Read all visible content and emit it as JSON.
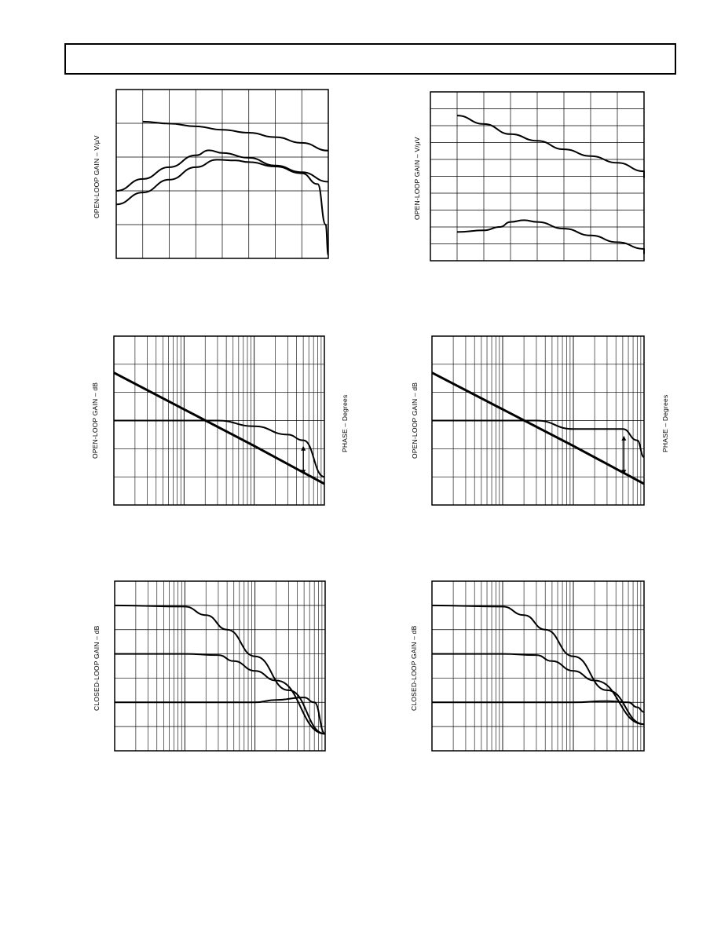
{
  "page": {
    "ylabel_open_loop_vuv": "OPEN-LOOP GAIN – V/μV",
    "ylabel_open_loop_db": "OPEN-LOOP GAIN – dB",
    "ylabel_phase": "PHASE – Degrees",
    "ylabel_closed_loop_db": "CLOSED-LOOP GAIN – dB"
  },
  "chart_data": [
    {
      "type": "line",
      "ylabel": "OPEN-LOOP GAIN – V/μV",
      "xscale": "linear",
      "xlim": [
        0,
        8
      ],
      "ylim": [
        0,
        5
      ],
      "grid": true,
      "series": [
        {
          "x": [
            1,
            2,
            3,
            4,
            5,
            6,
            7,
            8
          ],
          "y": [
            4.05,
            3.99,
            3.91,
            3.81,
            3.72,
            3.59,
            3.42,
            3.19
          ]
        },
        {
          "x": [
            0,
            1,
            2,
            3,
            3.5,
            4,
            5,
            6,
            7,
            8
          ],
          "y": [
            2.0,
            2.35,
            2.7,
            3.05,
            3.2,
            3.12,
            2.98,
            2.75,
            2.55,
            2.27
          ]
        },
        {
          "x": [
            0,
            1,
            2,
            3,
            3.8,
            4.5,
            5,
            6,
            7,
            7.6,
            7.9,
            8
          ],
          "y": [
            1.6,
            1.95,
            2.33,
            2.7,
            2.92,
            2.9,
            2.85,
            2.72,
            2.52,
            2.2,
            1.0,
            0.1
          ]
        }
      ]
    },
    {
      "type": "line",
      "ylabel": "OPEN-LOOP GAIN – V/μV",
      "xscale": "linear",
      "xlim": [
        0,
        8
      ],
      "ylim": [
        0,
        10
      ],
      "grid": true,
      "series": [
        {
          "x": [
            1,
            2,
            3,
            4,
            5,
            6,
            7,
            8,
            9
          ],
          "y": [
            8.6,
            8.1,
            7.5,
            7.1,
            6.6,
            6.2,
            5.8,
            5.3,
            4.9
          ]
        },
        {
          "x": [
            1,
            2,
            2.6,
            3,
            3.5,
            4,
            5,
            6,
            7,
            8,
            9
          ],
          "y": [
            1.7,
            1.8,
            2.0,
            2.3,
            2.4,
            2.3,
            1.9,
            1.5,
            1.1,
            0.7,
            0.4
          ]
        }
      ]
    },
    {
      "type": "line",
      "ylabel": "OPEN-LOOP GAIN – dB",
      "y2label": "PHASE – Degrees",
      "xscale": "log",
      "xlim": [
        1,
        1000
      ],
      "ylim": [
        0,
        6
      ],
      "grid": true,
      "annotations": [
        "double-arrow"
      ],
      "series": [
        {
          "x": [
            1,
            10,
            100,
            1000
          ],
          "y": [
            4.7,
            3.4,
            2.1,
            0.75
          ]
        },
        {
          "x": [
            1,
            10,
            30,
            100,
            300,
            500,
            1000
          ],
          "y": [
            3.0,
            3.0,
            3.0,
            2.8,
            2.5,
            2.3,
            1.0
          ]
        }
      ]
    },
    {
      "type": "line",
      "ylabel": "OPEN-LOOP GAIN – dB",
      "y2label": "PHASE – Degrees",
      "xscale": "log",
      "xlim": [
        1,
        1000
      ],
      "ylim": [
        0,
        6
      ],
      "grid": true,
      "annotations": [
        "double-arrow"
      ],
      "series": [
        {
          "x": [
            1,
            10,
            100,
            1000
          ],
          "y": [
            4.7,
            3.4,
            2.1,
            0.75
          ]
        },
        {
          "x": [
            1,
            10,
            30,
            100,
            200,
            500,
            800,
            1000
          ],
          "y": [
            3.0,
            3.0,
            3.0,
            2.7,
            2.7,
            2.7,
            2.3,
            1.7
          ]
        }
      ]
    },
    {
      "type": "line",
      "ylabel": "CLOSED-LOOP GAIN – dB",
      "xscale": "log",
      "xlim": [
        1,
        1000
      ],
      "ylim": [
        0,
        7
      ],
      "grid": true,
      "series": [
        {
          "x": [
            1,
            10,
            20,
            40,
            100,
            300,
            1000
          ],
          "y": [
            6.0,
            5.95,
            5.6,
            5.0,
            3.9,
            2.5,
            0.7
          ]
        },
        {
          "x": [
            1,
            10,
            30,
            50,
            100,
            200,
            1000
          ],
          "y": [
            4.0,
            4.0,
            3.95,
            3.7,
            3.3,
            2.9,
            0.7
          ]
        },
        {
          "x": [
            1,
            10,
            100,
            200,
            500,
            700,
            1000
          ],
          "y": [
            2.0,
            2.0,
            2.0,
            2.1,
            2.2,
            2.0,
            0.7
          ]
        }
      ]
    },
    {
      "type": "line",
      "ylabel": "CLOSED-LOOP GAIN – dB",
      "xscale": "log",
      "xlim": [
        1,
        1000
      ],
      "ylim": [
        0,
        7
      ],
      "grid": true,
      "series": [
        {
          "x": [
            1,
            10,
            20,
            40,
            100,
            300,
            1000
          ],
          "y": [
            6.0,
            5.95,
            5.6,
            5.0,
            3.9,
            2.5,
            1.1
          ]
        },
        {
          "x": [
            1,
            10,
            30,
            50,
            100,
            200,
            1000
          ],
          "y": [
            4.0,
            4.0,
            3.95,
            3.7,
            3.3,
            2.9,
            1.1
          ]
        },
        {
          "x": [
            1,
            10,
            100,
            300,
            600,
            800,
            1000
          ],
          "y": [
            2.0,
            2.0,
            2.0,
            2.05,
            2.0,
            1.8,
            1.6
          ]
        }
      ]
    }
  ]
}
